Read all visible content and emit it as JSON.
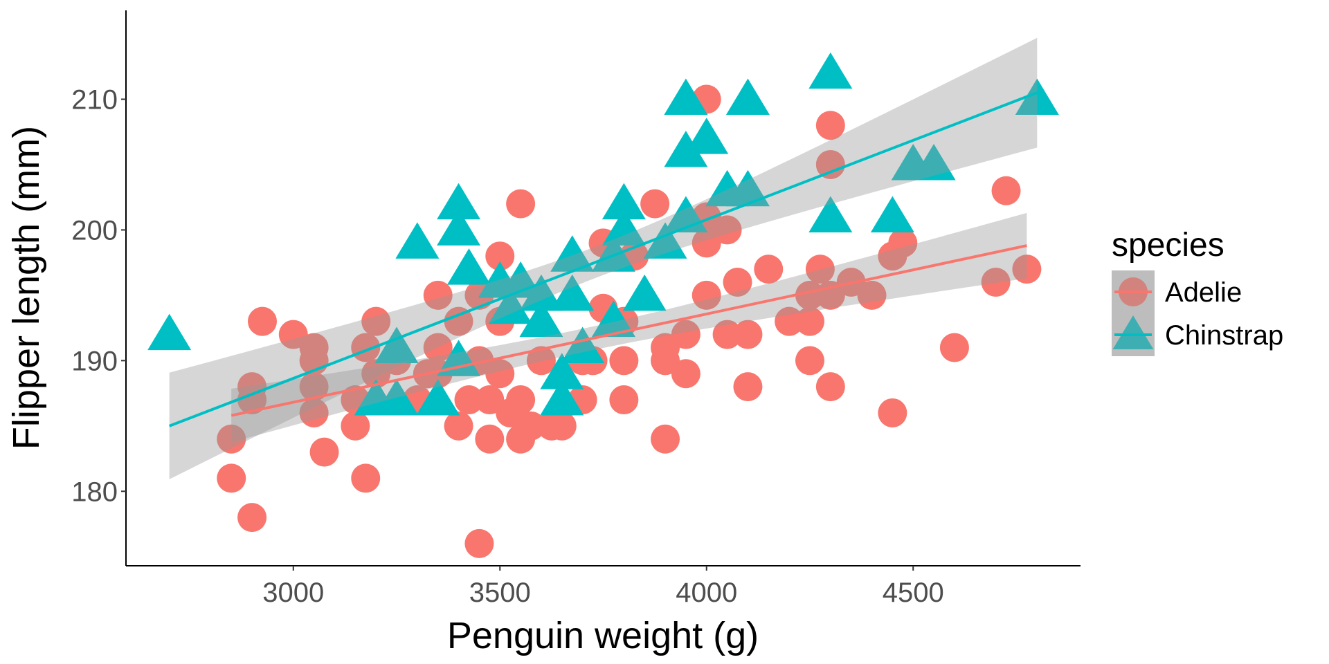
{
  "chart_data": {
    "type": "scatter",
    "title": "",
    "xlabel": "Penguin weight (g)",
    "ylabel": "Flipper length (mm)",
    "xlim": [
      2595,
      4905
    ],
    "ylim": [
      174.3,
      216.8
    ],
    "xticks": [
      3000,
      3500,
      4000,
      4500
    ],
    "yticks": [
      180,
      190,
      200,
      210
    ],
    "xtick_labels": [
      "3000",
      "3500",
      "4000",
      "4500"
    ],
    "ytick_labels": [
      "180",
      "190",
      "200",
      "210"
    ],
    "grid": false,
    "legend": {
      "title": "species",
      "placement": "right"
    },
    "series": [
      {
        "name": "Adelie",
        "color": "#F8766D",
        "marker": "circle",
        "points": [
          [
            2850,
            184
          ],
          [
            2850,
            181
          ],
          [
            2900,
            188
          ],
          [
            2900,
            187
          ],
          [
            2900,
            178
          ],
          [
            2925,
            193
          ],
          [
            3000,
            192
          ],
          [
            3050,
            191
          ],
          [
            3050,
            190
          ],
          [
            3050,
            188
          ],
          [
            3050,
            186
          ],
          [
            3075,
            183
          ],
          [
            3150,
            187
          ],
          [
            3150,
            185
          ],
          [
            3175,
            181
          ],
          [
            3175,
            191
          ],
          [
            3200,
            193
          ],
          [
            3200,
            189
          ],
          [
            3250,
            190
          ],
          [
            3300,
            187
          ],
          [
            3325,
            189
          ],
          [
            3350,
            195
          ],
          [
            3350,
            191
          ],
          [
            3350,
            189
          ],
          [
            3400,
            193
          ],
          [
            3400,
            185
          ],
          [
            3425,
            187
          ],
          [
            3450,
            190
          ],
          [
            3450,
            195
          ],
          [
            3450,
            176
          ],
          [
            3475,
            184
          ],
          [
            3475,
            187
          ],
          [
            3500,
            198
          ],
          [
            3500,
            193
          ],
          [
            3500,
            189
          ],
          [
            3525,
            186
          ],
          [
            3550,
            202
          ],
          [
            3550,
            187
          ],
          [
            3550,
            184
          ],
          [
            3575,
            185
          ],
          [
            3600,
            190
          ],
          [
            3625,
            185
          ],
          [
            3650,
            185
          ],
          [
            3700,
            187
          ],
          [
            3700,
            190
          ],
          [
            3725,
            190
          ],
          [
            3750,
            199
          ],
          [
            3750,
            194
          ],
          [
            3800,
            190
          ],
          [
            3800,
            187
          ],
          [
            3800,
            193
          ],
          [
            3825,
            198
          ],
          [
            3875,
            202
          ],
          [
            3900,
            191
          ],
          [
            3900,
            190
          ],
          [
            3900,
            184
          ],
          [
            3950,
            192
          ],
          [
            3950,
            189
          ],
          [
            4000,
            210
          ],
          [
            4000,
            201
          ],
          [
            4000,
            199
          ],
          [
            4000,
            195
          ],
          [
            4050,
            200
          ],
          [
            4050,
            192
          ],
          [
            4075,
            196
          ],
          [
            4100,
            192
          ],
          [
            4100,
            188
          ],
          [
            4150,
            197
          ],
          [
            4200,
            193
          ],
          [
            4250,
            195
          ],
          [
            4250,
            193
          ],
          [
            4250,
            190
          ],
          [
            4275,
            197
          ],
          [
            4300,
            208
          ],
          [
            4300,
            205
          ],
          [
            4300,
            195
          ],
          [
            4300,
            188
          ],
          [
            4350,
            196
          ],
          [
            4400,
            195
          ],
          [
            4450,
            198
          ],
          [
            4450,
            186
          ],
          [
            4475,
            199
          ],
          [
            4600,
            191
          ],
          [
            4700,
            196
          ],
          [
            4725,
            203
          ],
          [
            4775,
            197
          ]
        ],
        "fit": {
          "x": [
            2850,
            4775
          ],
          "y": [
            185.8,
            198.8
          ],
          "x_center": 3700,
          "ci_halfwidth_center": 0.9,
          "ci_halfwidth_ends": [
            2.2,
            2.5
          ]
        }
      },
      {
        "name": "Chinstrap",
        "color": "#00BFC4",
        "marker": "triangle",
        "points": [
          [
            2700,
            192
          ],
          [
            3200,
            187
          ],
          [
            3250,
            191
          ],
          [
            3250,
            187
          ],
          [
            3300,
            199
          ],
          [
            3350,
            187
          ],
          [
            3400,
            202
          ],
          [
            3400,
            200
          ],
          [
            3400,
            190
          ],
          [
            3425,
            197
          ],
          [
            3500,
            196
          ],
          [
            3525,
            194
          ],
          [
            3550,
            196
          ],
          [
            3600,
            195
          ],
          [
            3600,
            193
          ],
          [
            3650,
            189
          ],
          [
            3650,
            187
          ],
          [
            3675,
            195
          ],
          [
            3675,
            198
          ],
          [
            3700,
            191
          ],
          [
            3775,
            193
          ],
          [
            3775,
            198
          ],
          [
            3800,
            202
          ],
          [
            3800,
            200
          ],
          [
            3850,
            195
          ],
          [
            3900,
            199
          ],
          [
            3950,
            210
          ],
          [
            3950,
            206
          ],
          [
            3950,
            201
          ],
          [
            4000,
            207
          ],
          [
            4050,
            203
          ],
          [
            4100,
            210
          ],
          [
            4100,
            203
          ],
          [
            4300,
            212
          ],
          [
            4300,
            201
          ],
          [
            4450,
            201
          ],
          [
            4500,
            205
          ],
          [
            4550,
            205
          ],
          [
            4800,
            210
          ]
        ],
        "fit": {
          "x": [
            2700,
            4800
          ],
          "y": [
            185.0,
            210.5
          ],
          "x_center": 3733,
          "ci_halfwidth_center": 1.2,
          "ci_halfwidth_ends": [
            4.2,
            4.1
          ]
        }
      }
    ]
  }
}
